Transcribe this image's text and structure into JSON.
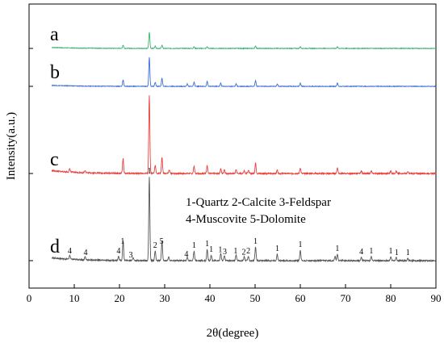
{
  "chart_data": {
    "type": "line",
    "title": "",
    "xlabel": "2θ(degree)",
    "ylabel": "Intensity(a.u.)",
    "xlim": [
      0,
      90
    ],
    "x_ticks": [
      0,
      10,
      20,
      30,
      40,
      50,
      60,
      70,
      80,
      90
    ],
    "grid": false,
    "legend_text": [
      "1-Quartz  2-Calcite  3-Feldspar",
      "4-Muscovite  5-Dolomite"
    ],
    "series": [
      {
        "name": "a",
        "color": "#3cb371",
        "baseline": 1.0,
        "x_range": [
          5,
          90
        ],
        "peaks": [
          [
            20.8,
            4
          ],
          [
            26.6,
            20
          ],
          [
            27.9,
            3
          ],
          [
            29.4,
            4
          ],
          [
            36.5,
            2
          ],
          [
            39.4,
            2
          ],
          [
            50.1,
            3
          ],
          [
            60.0,
            2
          ],
          [
            68.2,
            2
          ]
        ]
      },
      {
        "name": "b",
        "color": "#3b6fd8",
        "baseline": 1.0,
        "x_range": [
          5,
          90
        ],
        "peaks": [
          [
            20.8,
            8
          ],
          [
            26.6,
            36
          ],
          [
            27.9,
            5
          ],
          [
            29.4,
            10
          ],
          [
            35.0,
            3
          ],
          [
            36.5,
            5
          ],
          [
            39.4,
            6
          ],
          [
            42.4,
            4
          ],
          [
            45.8,
            3
          ],
          [
            50.1,
            7
          ],
          [
            54.9,
            3
          ],
          [
            60.0,
            4
          ],
          [
            68.2,
            4
          ]
        ]
      },
      {
        "name": "c",
        "color": "#e8413c",
        "baseline": 1.0,
        "x_range": [
          5,
          90
        ],
        "peaks": [
          [
            9.0,
            4
          ],
          [
            12.4,
            3
          ],
          [
            20.8,
            18
          ],
          [
            26.6,
            96
          ],
          [
            27.9,
            10
          ],
          [
            29.4,
            20
          ],
          [
            31.0,
            4
          ],
          [
            36.5,
            9
          ],
          [
            39.4,
            10
          ],
          [
            42.4,
            6
          ],
          [
            43.2,
            5
          ],
          [
            45.8,
            5
          ],
          [
            47.6,
            4
          ],
          [
            48.5,
            4
          ],
          [
            50.1,
            13
          ],
          [
            54.9,
            4
          ],
          [
            60.0,
            7
          ],
          [
            68.2,
            7
          ],
          [
            73.5,
            3
          ],
          [
            75.7,
            3
          ],
          [
            80.0,
            3
          ],
          [
            81.2,
            3
          ],
          [
            83.8,
            2
          ]
        ]
      },
      {
        "name": "d",
        "color": "#555555",
        "baseline": 1.0,
        "x_range": [
          5,
          90
        ],
        "peaks": [
          [
            9.0,
            5
          ],
          [
            12.4,
            4
          ],
          [
            19.8,
            5
          ],
          [
            20.8,
            24
          ],
          [
            23.0,
            4
          ],
          [
            26.6,
            104
          ],
          [
            27.9,
            12
          ],
          [
            29.4,
            24
          ],
          [
            30.9,
            5
          ],
          [
            35.0,
            4
          ],
          [
            36.5,
            12
          ],
          [
            39.4,
            14
          ],
          [
            40.3,
            7
          ],
          [
            42.4,
            9
          ],
          [
            43.2,
            6
          ],
          [
            45.8,
            7
          ],
          [
            47.6,
            5
          ],
          [
            48.5,
            5
          ],
          [
            50.1,
            17
          ],
          [
            54.9,
            8
          ],
          [
            60.0,
            13
          ],
          [
            67.7,
            5
          ],
          [
            68.2,
            8
          ],
          [
            73.5,
            4
          ],
          [
            75.7,
            5
          ],
          [
            80.0,
            5
          ],
          [
            81.2,
            4
          ],
          [
            83.8,
            3
          ]
        ]
      }
    ],
    "peak_labels": [
      {
        "x": 9.0,
        "text": "4"
      },
      {
        "x": 12.5,
        "text": "4"
      },
      {
        "x": 19.8,
        "text": "4"
      },
      {
        "x": 20.7,
        "text": "1"
      },
      {
        "x": 22.5,
        "text": "3"
      },
      {
        "x": 26.6,
        "text": "1"
      },
      {
        "x": 27.9,
        "text": "2"
      },
      {
        "x": 29.3,
        "text": "5"
      },
      {
        "x": 34.8,
        "text": "4"
      },
      {
        "x": 36.5,
        "text": "1"
      },
      {
        "x": 39.4,
        "text": "1"
      },
      {
        "x": 40.3,
        "text": "1"
      },
      {
        "x": 42.3,
        "text": "1"
      },
      {
        "x": 43.3,
        "text": "3"
      },
      {
        "x": 45.7,
        "text": "1"
      },
      {
        "x": 47.5,
        "text": "2"
      },
      {
        "x": 48.5,
        "text": "2"
      },
      {
        "x": 50.1,
        "text": "1"
      },
      {
        "x": 54.9,
        "text": "1"
      },
      {
        "x": 60.0,
        "text": "1"
      },
      {
        "x": 68.2,
        "text": "1"
      },
      {
        "x": 73.5,
        "text": "4"
      },
      {
        "x": 75.7,
        "text": "1"
      },
      {
        "x": 80.0,
        "text": "1"
      },
      {
        "x": 81.3,
        "text": "1"
      },
      {
        "x": 83.8,
        "text": "1"
      }
    ]
  }
}
